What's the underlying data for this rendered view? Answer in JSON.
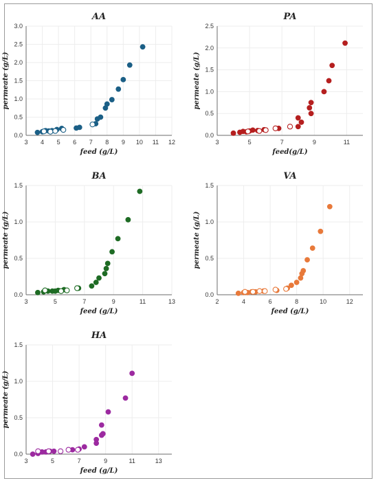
{
  "chart_data": [
    {
      "type": "scatter",
      "title": "AA",
      "xlabel": "feed (g/L)",
      "ylabel": "permeate (g/L)",
      "xlim": [
        3,
        12
      ],
      "ylim": [
        0,
        3
      ],
      "xticks": [
        "3",
        "4",
        "5",
        "6",
        "7",
        "8",
        "9",
        "10",
        "11",
        "12"
      ],
      "yticks": [
        "0.0",
        "0.5",
        "1.0",
        "1.5",
        "2.0",
        "2.5",
        "3.0"
      ],
      "color": "#1b5f86",
      "series": [
        {
          "marker": "filled",
          "points": [
            [
              3.7,
              0.08
            ],
            [
              4.0,
              0.1
            ],
            [
              4.2,
              0.13
            ],
            [
              4.4,
              0.12
            ],
            [
              4.6,
              0.13
            ],
            [
              4.9,
              0.16
            ],
            [
              5.2,
              0.19
            ],
            [
              6.1,
              0.2
            ],
            [
              6.3,
              0.22
            ],
            [
              7.3,
              0.32
            ],
            [
              7.4,
              0.45
            ],
            [
              7.6,
              0.5
            ],
            [
              7.9,
              0.75
            ],
            [
              8.0,
              0.86
            ],
            [
              8.3,
              0.98
            ],
            [
              8.7,
              1.27
            ],
            [
              9.0,
              1.53
            ],
            [
              9.4,
              1.93
            ],
            [
              10.2,
              2.43
            ]
          ]
        },
        {
          "marker": "open",
          "points": [
            [
              4.1,
              0.11
            ],
            [
              4.5,
              0.1
            ],
            [
              4.8,
              0.12
            ],
            [
              5.3,
              0.15
            ],
            [
              7.1,
              0.3
            ]
          ]
        }
      ]
    },
    {
      "type": "scatter",
      "title": "PA",
      "xlabel": "feed(g/L)",
      "ylabel": "permeate (g/L)",
      "xlim": [
        3,
        12
      ],
      "ylim": [
        0,
        2.5
      ],
      "xticks": [
        "3",
        "5",
        "7",
        "9",
        "11"
      ],
      "yticks": [
        "0.0",
        "0.5",
        "1.0",
        "1.5",
        "2.0",
        "2.5"
      ],
      "color": "#b51f1f",
      "series": [
        {
          "marker": "filled",
          "points": [
            [
              4.0,
              0.05
            ],
            [
              4.4,
              0.07
            ],
            [
              4.6,
              0.09
            ],
            [
              4.8,
              0.08
            ],
            [
              5.0,
              0.1
            ],
            [
              5.2,
              0.12
            ],
            [
              5.5,
              0.11
            ],
            [
              5.9,
              0.13
            ],
            [
              6.8,
              0.16
            ],
            [
              8.0,
              0.2
            ],
            [
              8.0,
              0.4
            ],
            [
              8.2,
              0.3
            ],
            [
              8.8,
              0.5
            ],
            [
              8.7,
              0.63
            ],
            [
              8.8,
              0.75
            ],
            [
              9.6,
              1.0
            ],
            [
              9.9,
              1.25
            ],
            [
              10.1,
              1.6
            ],
            [
              10.9,
              2.11
            ]
          ]
        },
        {
          "marker": "open",
          "points": [
            [
              4.9,
              0.09
            ],
            [
              5.6,
              0.1
            ],
            [
              6.0,
              0.12
            ],
            [
              6.6,
              0.16
            ],
            [
              7.5,
              0.2
            ]
          ]
        }
      ]
    },
    {
      "type": "scatter",
      "title": "BA",
      "xlabel": "feed (g/L)",
      "ylabel": "permeate (g/L)",
      "xlim": [
        3,
        13
      ],
      "ylim": [
        0,
        1.5
      ],
      "xticks": [
        "3",
        "5",
        "7",
        "9",
        "11",
        "13"
      ],
      "yticks": [
        "0.0",
        "0.5",
        "1.0",
        "1.5"
      ],
      "color": "#1e6b24",
      "series": [
        {
          "marker": "filled",
          "points": [
            [
              3.8,
              0.03
            ],
            [
              4.2,
              0.04
            ],
            [
              4.5,
              0.05
            ],
            [
              4.8,
              0.05
            ],
            [
              5.0,
              0.05
            ],
            [
              5.2,
              0.06
            ],
            [
              5.6,
              0.07
            ],
            [
              6.6,
              0.09
            ],
            [
              7.5,
              0.12
            ],
            [
              7.8,
              0.17
            ],
            [
              8.0,
              0.23
            ],
            [
              8.4,
              0.29
            ],
            [
              8.5,
              0.36
            ],
            [
              8.6,
              0.43
            ],
            [
              8.9,
              0.59
            ],
            [
              9.3,
              0.77
            ],
            [
              10.0,
              1.03
            ],
            [
              10.8,
              1.42
            ]
          ]
        },
        {
          "marker": "open",
          "points": [
            [
              4.3,
              0.06
            ],
            [
              5.4,
              0.05
            ],
            [
              5.8,
              0.06
            ],
            [
              6.5,
              0.09
            ]
          ]
        }
      ]
    },
    {
      "type": "scatter",
      "title": "VA",
      "xlabel": "feed (g/L)",
      "ylabel": "permeate (g/L)",
      "xlim": [
        2,
        13
      ],
      "ylim": [
        0,
        1.5
      ],
      "xticks": [
        "2",
        "4",
        "6",
        "8",
        "10",
        "12"
      ],
      "yticks": [
        "0.0",
        "0.5",
        "1.0",
        "1.5"
      ],
      "color": "#e8793a",
      "series": [
        {
          "marker": "filled",
          "points": [
            [
              3.6,
              0.02
            ],
            [
              4.0,
              0.03
            ],
            [
              4.3,
              0.03
            ],
            [
              4.6,
              0.04
            ],
            [
              4.9,
              0.04
            ],
            [
              5.5,
              0.05
            ],
            [
              6.5,
              0.06
            ],
            [
              7.3,
              0.09
            ],
            [
              7.6,
              0.13
            ],
            [
              8.0,
              0.17
            ],
            [
              8.3,
              0.23
            ],
            [
              8.4,
              0.29
            ],
            [
              8.5,
              0.33
            ],
            [
              8.8,
              0.48
            ],
            [
              9.2,
              0.64
            ],
            [
              9.8,
              0.87
            ],
            [
              10.5,
              1.21
            ]
          ]
        },
        {
          "marker": "open",
          "points": [
            [
              4.1,
              0.04
            ],
            [
              4.7,
              0.04
            ],
            [
              5.2,
              0.05
            ],
            [
              5.6,
              0.05
            ],
            [
              6.4,
              0.07
            ],
            [
              7.2,
              0.08
            ]
          ]
        }
      ]
    },
    {
      "type": "scatter",
      "title": "HA",
      "xlabel": "feed (g/L)",
      "ylabel": "permeate (g/L)",
      "xlim": [
        3,
        14
      ],
      "ylim": [
        0,
        1.5
      ],
      "xticks": [
        "3",
        "5",
        "7",
        "9",
        "11",
        "13"
      ],
      "yticks": [
        "0.0",
        "0.5",
        "1.0",
        "1.5"
      ],
      "color": "#9c2aa0",
      "series": [
        {
          "marker": "filled",
          "points": [
            [
              3.5,
              0.0
            ],
            [
              3.9,
              0.01
            ],
            [
              4.2,
              0.03
            ],
            [
              4.5,
              0.03
            ],
            [
              4.8,
              0.04
            ],
            [
              5.1,
              0.04
            ],
            [
              6.5,
              0.06
            ],
            [
              7.0,
              0.07
            ],
            [
              7.4,
              0.1
            ],
            [
              8.3,
              0.15
            ],
            [
              8.3,
              0.2
            ],
            [
              8.7,
              0.26
            ],
            [
              8.8,
              0.28
            ],
            [
              8.7,
              0.4
            ],
            [
              9.2,
              0.58
            ],
            [
              10.5,
              0.77
            ],
            [
              11.0,
              1.11
            ]
          ]
        },
        {
          "marker": "open",
          "points": [
            [
              3.9,
              0.04
            ],
            [
              4.7,
              0.04
            ],
            [
              5.6,
              0.04
            ],
            [
              6.2,
              0.06
            ],
            [
              6.9,
              0.06
            ]
          ]
        }
      ]
    }
  ]
}
